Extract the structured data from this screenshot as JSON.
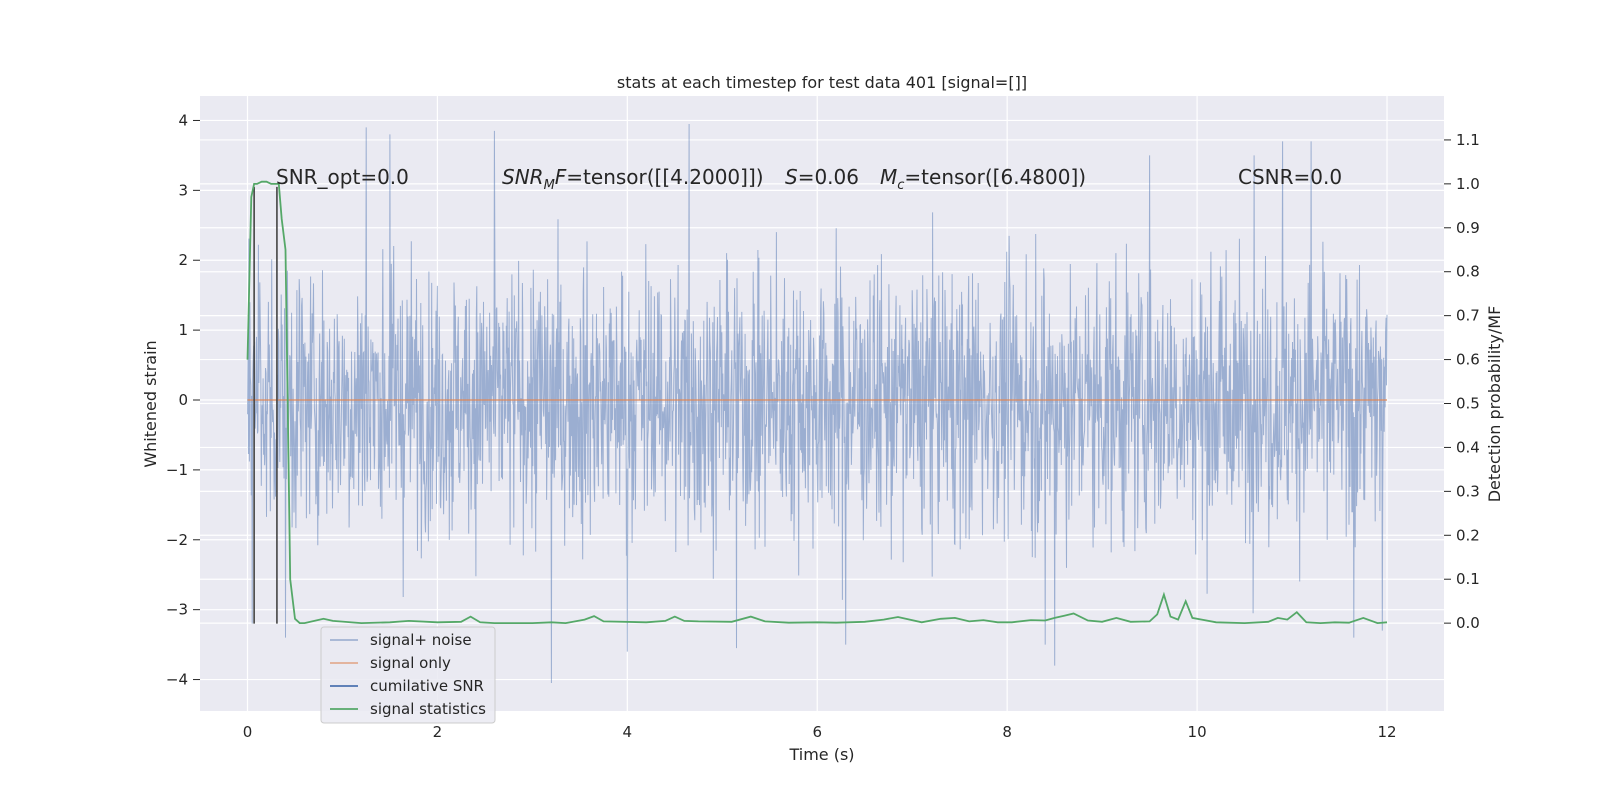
{
  "chart_data": {
    "type": "line",
    "title": "stats at each timestep for test data 401 [signal=[]]",
    "xlabel": "Time (s)",
    "ylabel": "Whitened strain",
    "ylabel_right": "Detection probability/MF",
    "xlim": [
      -0.5,
      12.6
    ],
    "ylim": [
      -4.45,
      4.35
    ],
    "ylim_right": [
      -0.2,
      1.2
    ],
    "x_ticks": [
      "0",
      "2",
      "4",
      "6",
      "8",
      "10",
      "12"
    ],
    "y_ticks": [
      "4",
      "3",
      "2",
      "1",
      "0",
      "−1",
      "−2",
      "−3",
      "−4"
    ],
    "y_right_ticks": [
      "1.1",
      "1.0",
      "0.9",
      "0.8",
      "0.7",
      "0.6",
      "0.5",
      "0.4",
      "0.3",
      "0.2",
      "0.1",
      "0.0"
    ],
    "grid": true,
    "legend_placement": "lower-left",
    "annotations": {
      "snr_opt": "SNR_opt=0.0",
      "snr_mf_math": "SNR",
      "snr_mf_sub": "M",
      "snr_mf_f": "F",
      "snr_mf_value": "=tensor([[4.2000]])",
      "s_math": "S",
      "s_value": "=0.06",
      "mc_math": "M",
      "mc_sub": "c",
      "mc_value": "=tensor([6.4800])",
      "csnr": "CSNR=0.0"
    },
    "series": [
      {
        "name": "signal+ noise",
        "color": "#4c72b0",
        "style": "dense noise, approximately uniform in [-1.6, 1.8] with spikes to about 3.9 and -4.1",
        "x_range": [
          0,
          12
        ],
        "spikes": [
          [
            0.05,
            2.4
          ],
          [
            0.05,
            -3.2
          ],
          [
            1.25,
            3.9
          ],
          [
            1.5,
            3.8
          ],
          [
            2.6,
            3.85
          ],
          [
            3.2,
            -4.05
          ],
          [
            4.0,
            -3.6
          ],
          [
            4.65,
            3.95
          ],
          [
            5.15,
            -3.55
          ],
          [
            6.3,
            -3.5
          ],
          [
            8.5,
            -3.8
          ],
          [
            8.4,
            -3.5
          ],
          [
            9.5,
            3.5
          ],
          [
            10.6,
            3.5
          ],
          [
            10.9,
            3.7
          ],
          [
            11.2,
            3.7
          ],
          [
            11.65,
            -3.4
          ],
          [
            11.95,
            -3.3
          ],
          [
            0.4,
            -3.4
          ]
        ]
      },
      {
        "name": "signal only",
        "color": "#dd8452",
        "x": [
          0,
          12
        ],
        "y": [
          0,
          0
        ]
      },
      {
        "name": "cumilative SNR",
        "color": "#4c72b0"
      },
      {
        "name": "signal statistics",
        "color": "#55a868",
        "axis": "right",
        "x": [
          0.0,
          0.04,
          0.07,
          0.1,
          0.15,
          0.2,
          0.25,
          0.3,
          0.33,
          0.36,
          0.4,
          0.45,
          0.5,
          0.55,
          0.6,
          0.8,
          0.9,
          1.2,
          1.5,
          1.7,
          2.0,
          2.25,
          2.35,
          2.45,
          2.6,
          3.0,
          3.2,
          3.35,
          3.55,
          3.65,
          3.75,
          4.2,
          4.4,
          4.5,
          4.6,
          4.75,
          5.1,
          5.3,
          5.45,
          5.7,
          6.0,
          6.2,
          6.5,
          6.7,
          6.85,
          7.1,
          7.3,
          7.45,
          7.6,
          7.75,
          7.9,
          8.05,
          8.25,
          8.4,
          8.5,
          8.6,
          8.7,
          8.85,
          9.0,
          9.15,
          9.3,
          9.5,
          9.58,
          9.65,
          9.72,
          9.8,
          9.88,
          9.95,
          10.05,
          10.2,
          10.5,
          10.75,
          10.85,
          10.95,
          11.05,
          11.15,
          11.3,
          11.45,
          11.6,
          11.75,
          11.9,
          12.0
        ],
        "y": [
          0.6,
          0.97,
          1.0,
          1.0,
          1.005,
          1.005,
          1.0,
          1.0,
          1.0,
          0.92,
          0.85,
          0.1,
          0.01,
          0.0,
          0.0,
          0.01,
          0.005,
          0.0,
          0.002,
          0.005,
          0.002,
          0.003,
          0.015,
          0.002,
          0.0,
          0.0,
          0.002,
          0.0,
          0.008,
          0.016,
          0.004,
          0.002,
          0.005,
          0.015,
          0.005,
          0.004,
          0.003,
          0.015,
          0.004,
          0.001,
          0.002,
          0.001,
          0.003,
          0.008,
          0.014,
          0.002,
          0.01,
          0.012,
          0.004,
          0.007,
          0.002,
          0.002,
          0.007,
          0.006,
          0.012,
          0.017,
          0.022,
          0.006,
          0.003,
          0.012,
          0.003,
          0.004,
          0.02,
          0.065,
          0.015,
          0.008,
          0.05,
          0.012,
          0.008,
          0.002,
          0.0,
          0.003,
          0.012,
          0.008,
          0.025,
          0.002,
          0.0,
          0.002,
          0.001,
          0.012,
          0.0,
          0.002
        ]
      }
    ],
    "vertical_lines": [
      {
        "x": 0.07,
        "y0": -3.2,
        "y1": 3.05,
        "color": "#444444"
      },
      {
        "x": 0.31,
        "y0": -3.2,
        "y1": 3.05,
        "color": "#444444"
      }
    ]
  }
}
